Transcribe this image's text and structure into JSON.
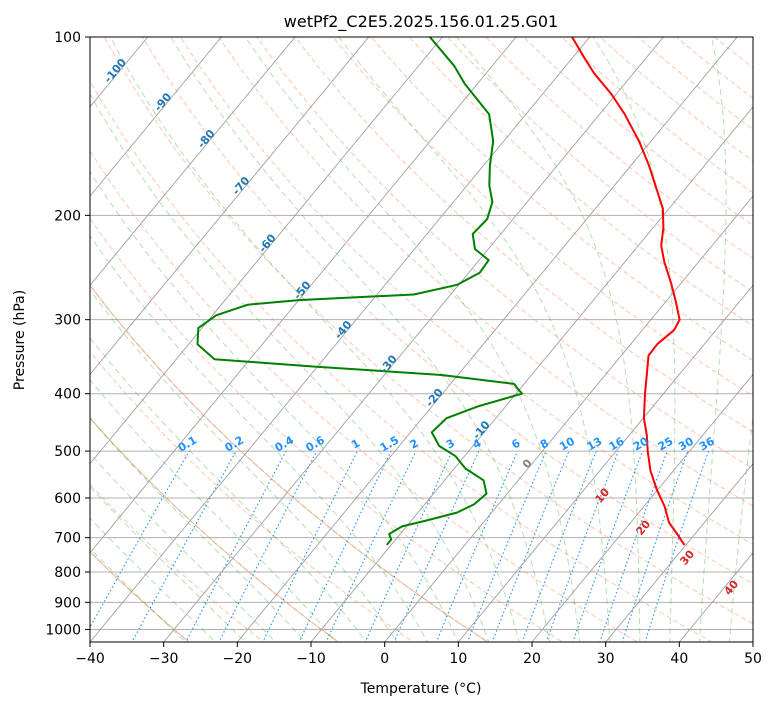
{
  "chart_data": {
    "type": "line",
    "chart_kind": "skew-T log-P diagram",
    "title": "wetPf2_C2E5.2025.156.01.25.G01",
    "xlabel": "Temperature (°C)",
    "ylabel": "Pressure (hPa)",
    "xlim": [
      -40,
      50
    ],
    "ylim": [
      1050,
      100
    ],
    "y_scale": "log (inverted)",
    "grid": true,
    "x_ticks": [
      "−40",
      "−30",
      "−20",
      "−10",
      "0",
      "10",
      "20",
      "30",
      "40",
      "50"
    ],
    "x_tick_values": [
      -40,
      -30,
      -20,
      -10,
      0,
      10,
      20,
      30,
      40,
      50
    ],
    "y_ticks": [
      "100",
      "200",
      "300",
      "400",
      "500",
      "600",
      "700",
      "800",
      "900",
      "1000"
    ],
    "y_tick_values": [
      100,
      200,
      300,
      400,
      500,
      600,
      700,
      800,
      900,
      1000
    ],
    "colors": {
      "temperature": "#ff0000",
      "dewpoint": "#008000",
      "isotherm_labels": "#1f77b4",
      "isotherm_lines": "#808080",
      "dry_adiabats": "#ff7f50",
      "moist_adiabats": "#2ca02c",
      "mixing_ratio": "#1e90ff",
      "theta_e_labels": "#d62728",
      "gray_label": "#808080",
      "tan_lines": "#c8a070"
    },
    "series": [
      {
        "role": "temperature",
        "color": "#ff0000",
        "points": [
          {
            "p": 720,
            "t": 29.8
          },
          {
            "p": 690,
            "t": 27.6
          },
          {
            "p": 660,
            "t": 25.2
          },
          {
            "p": 620,
            "t": 22.8
          },
          {
            "p": 580,
            "t": 19.8
          },
          {
            "p": 540,
            "t": 16.9
          },
          {
            "p": 500,
            "t": 14.3
          },
          {
            "p": 470,
            "t": 12.4
          },
          {
            "p": 440,
            "t": 10.1
          },
          {
            "p": 400,
            "t": 7.5
          },
          {
            "p": 370,
            "t": 5.5
          },
          {
            "p": 345,
            "t": 3.7
          },
          {
            "p": 330,
            "t": 3.6
          },
          {
            "p": 312,
            "t": 4.3
          },
          {
            "p": 300,
            "t": 3.9
          },
          {
            "p": 280,
            "t": 1.4
          },
          {
            "p": 260,
            "t": -1.4
          },
          {
            "p": 240,
            "t": -4.6
          },
          {
            "p": 225,
            "t": -6.9
          },
          {
            "p": 210,
            "t": -8.6
          },
          {
            "p": 195,
            "t": -10.8
          },
          {
            "p": 180,
            "t": -14.0
          },
          {
            "p": 165,
            "t": -17.5
          },
          {
            "p": 150,
            "t": -21.6
          },
          {
            "p": 135,
            "t": -26.6
          },
          {
            "p": 125,
            "t": -30.6
          },
          {
            "p": 115,
            "t": -35.4
          },
          {
            "p": 108,
            "t": -38.6
          },
          {
            "p": 100,
            "t": -42.4
          }
        ]
      },
      {
        "role": "dewpoint",
        "color": "#008000",
        "points": [
          {
            "p": 720,
            "t": -10.6
          },
          {
            "p": 705,
            "t": -10.6
          },
          {
            "p": 690,
            "t": -11.5
          },
          {
            "p": 670,
            "t": -10.6
          },
          {
            "p": 655,
            "t": -8.0
          },
          {
            "p": 635,
            "t": -4.7
          },
          {
            "p": 615,
            "t": -3.3
          },
          {
            "p": 590,
            "t": -2.8
          },
          {
            "p": 560,
            "t": -4.7
          },
          {
            "p": 535,
            "t": -8.5
          },
          {
            "p": 510,
            "t": -11.2
          },
          {
            "p": 490,
            "t": -14.6
          },
          {
            "p": 465,
            "t": -17.1
          },
          {
            "p": 440,
            "t": -16.7
          },
          {
            "p": 420,
            "t": -13.7
          },
          {
            "p": 400,
            "t": -9.2
          },
          {
            "p": 385,
            "t": -11.4
          },
          {
            "p": 372,
            "t": -22.2
          },
          {
            "p": 360,
            "t": -40.4
          },
          {
            "p": 350,
            "t": -54.8
          },
          {
            "p": 330,
            "t": -58.8
          },
          {
            "p": 310,
            "t": -60.5
          },
          {
            "p": 295,
            "t": -59.5
          },
          {
            "p": 283,
            "t": -56.4
          },
          {
            "p": 278,
            "t": -50.0
          },
          {
            "p": 272,
            "t": -35.0
          },
          {
            "p": 262,
            "t": -30.2
          },
          {
            "p": 250,
            "t": -28.5
          },
          {
            "p": 238,
            "t": -28.7
          },
          {
            "p": 228,
            "t": -31.8
          },
          {
            "p": 215,
            "t": -33.8
          },
          {
            "p": 203,
            "t": -33.5
          },
          {
            "p": 190,
            "t": -34.7
          },
          {
            "p": 178,
            "t": -37.0
          },
          {
            "p": 165,
            "t": -39.1
          },
          {
            "p": 150,
            "t": -41.4
          },
          {
            "p": 135,
            "t": -45.0
          },
          {
            "p": 120,
            "t": -51.7
          },
          {
            "p": 112,
            "t": -55.1
          },
          {
            "p": 100,
            "t": -61.7
          }
        ]
      }
    ],
    "isotherm_labels": [
      {
        "label": "-100",
        "t": -100
      },
      {
        "label": "-90",
        "t": -90
      },
      {
        "label": "-80",
        "t": -80
      },
      {
        "label": "-70",
        "t": -70
      },
      {
        "label": "-60",
        "t": -60
      },
      {
        "label": "-50",
        "t": -50
      },
      {
        "label": "-40",
        "t": -40
      },
      {
        "label": "-30",
        "t": -30
      },
      {
        "label": "-20",
        "t": -20
      },
      {
        "label": "-10",
        "t": -10
      },
      {
        "label": "0",
        "t": 0
      }
    ],
    "mixing_ratio_labels": [
      "0.1",
      "0.2",
      "0.4",
      "0.6",
      "1",
      "1.5",
      "2",
      "3",
      "4",
      "6",
      "8",
      "10",
      "13",
      "16",
      "20",
      "25",
      "30",
      "36"
    ],
    "theta_e_labels": [
      "10",
      "20",
      "30",
      "40"
    ]
  }
}
